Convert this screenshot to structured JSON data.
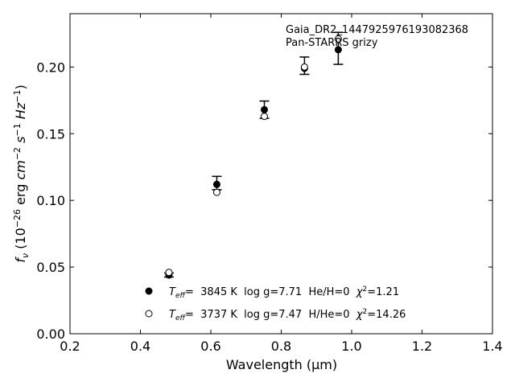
{
  "chart_data": {
    "type": "scatter",
    "xlabel": "Wavelength (μm)",
    "ylabel": "f_ν (10^-26 erg cm^-2 s^-1 Hz^-1)",
    "xlim": [
      0.2,
      1.4
    ],
    "ylim": [
      0.0,
      0.24
    ],
    "x_ticks": [
      "0.2",
      "0.4",
      "0.6",
      "0.8",
      "1.0",
      "1.2",
      "1.4"
    ],
    "y_ticks": [
      "0.00",
      "0.05",
      "0.10",
      "0.15",
      "0.20"
    ],
    "annotation": {
      "line1": "Gaia_DR2_1447925976193082368",
      "line2": "Pan-STARRS grizy"
    },
    "observed": {
      "x": [
        0.481,
        0.617,
        0.752,
        0.866,
        0.962
      ],
      "y": [
        0.044,
        0.113,
        0.168,
        0.201,
        0.214
      ],
      "err": [
        0.0015,
        0.005,
        0.0065,
        0.0065,
        0.012
      ]
    },
    "series": [
      {
        "name": "Teff= 3845 K log g=7.71 He/H=0 χ2=1.21",
        "marker": "filled-circle",
        "x": [
          0.481,
          0.617,
          0.752,
          0.866,
          0.962
        ],
        "y": [
          0.044,
          0.112,
          0.168,
          0.199,
          0.213
        ]
      },
      {
        "name": "Teff= 3737 K log g=7.47 H/He=0 χ2=14.26",
        "marker": "open-circle",
        "x": [
          0.481,
          0.617,
          0.752,
          0.866,
          0.962
        ],
        "y": [
          0.046,
          0.106,
          0.163,
          0.2,
          0.221
        ]
      }
    ],
    "legend": [
      {
        "marker": "filled-circle",
        "teff_sym": "T",
        "teff_sub": "eff",
        "text_after_teff": "=  3845 K  log g=7.71  He/H=0  ",
        "chi_sym": "χ",
        "chi_sup": "2",
        "chi_val": "=1.21"
      },
      {
        "marker": "open-circle",
        "teff_sym": "T",
        "teff_sub": "eff",
        "text_after_teff": "=  3737 K  log g=7.47  H/He=0  ",
        "chi_sym": "χ",
        "chi_sup": "2",
        "chi_val": "=14.26"
      }
    ],
    "legend_position": "lower-center",
    "grid": false
  }
}
